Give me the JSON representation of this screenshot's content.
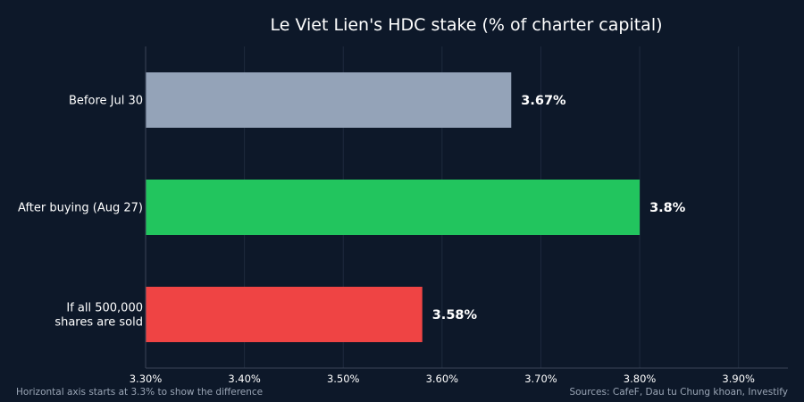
{
  "chart_data": {
    "type": "bar",
    "orientation": "horizontal",
    "title": "Le Viet Lien's HDC stake (% of charter capital)",
    "categories": [
      [
        "Before Jul 30"
      ],
      [
        "After buying (Aug 27)"
      ],
      [
        "If all 500,000",
        "shares are sold"
      ]
    ],
    "values": [
      3.67,
      3.8,
      3.58
    ],
    "value_labels": [
      "3.67%",
      "3.8%",
      "3.58%"
    ],
    "bar_colors": [
      "#94a3b8",
      "#22c55e",
      "#ef4444"
    ],
    "xlim": [
      3.3,
      3.95
    ],
    "xticks": [
      3.3,
      3.4,
      3.5,
      3.6,
      3.7,
      3.8,
      3.9
    ],
    "xtick_labels": [
      "3.30%",
      "3.40%",
      "3.50%",
      "3.60%",
      "3.70%",
      "3.80%",
      "3.90%"
    ],
    "grid": "vertical",
    "legend": "none"
  },
  "footer": {
    "note": "Horizontal axis starts at 3.3% to show the difference",
    "source": "Sources: CafeF, Dau tu Chung khoan, Investify"
  }
}
